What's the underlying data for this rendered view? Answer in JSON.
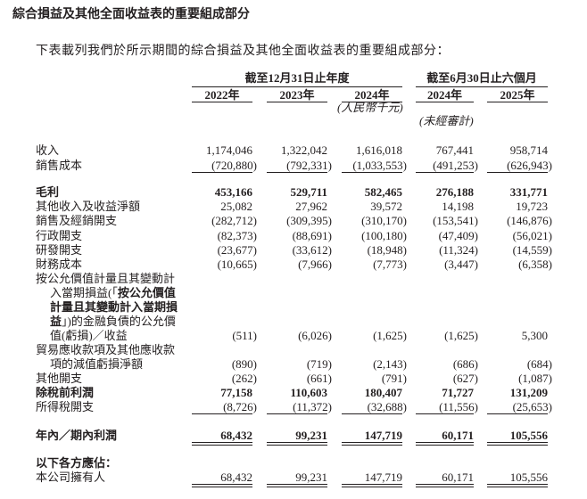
{
  "title": "綜合損益及其他全面收益表的重要組成部分",
  "intro": "下表載列我們於所示期間的綜合損益及其他全面收益表的重要組成部分：",
  "header": {
    "group_annual": "截至12月31日止年度",
    "group_half": "截至6月30日止六個月",
    "years": [
      "2022年",
      "2023年",
      "2024年",
      "2024年",
      "2025年"
    ],
    "unit": "(人民幣千元)",
    "unaudited": "(未經審計)"
  },
  "rows": [
    {
      "label": [
        [
          {
            "t": "收入"
          }
        ]
      ],
      "values": [
        "1,174,046",
        "1,322,042",
        "1,616,018",
        "767,441",
        "958,714"
      ]
    },
    {
      "label": [
        [
          {
            "t": "銷售成本"
          }
        ]
      ],
      "values": [
        "(720,880)",
        "(792,331)",
        "(1,033,553)",
        "(491,253)",
        "(626,943)"
      ],
      "rule": "single"
    },
    {
      "label": [
        [
          {
            "t": "毛利"
          }
        ]
      ],
      "values": [
        "453,166",
        "529,711",
        "582,465",
        "276,188",
        "331,771"
      ],
      "bold": true
    },
    {
      "label": [
        [
          {
            "t": "其他收入及收益淨額"
          }
        ]
      ],
      "values": [
        "25,082",
        "27,962",
        "39,572",
        "14,198",
        "19,723"
      ]
    },
    {
      "label": [
        [
          {
            "t": "銷售及經銷開支"
          }
        ]
      ],
      "values": [
        "(282,712)",
        "(309,395)",
        "(310,170)",
        "(153,541)",
        "(146,876)"
      ]
    },
    {
      "label": [
        [
          {
            "t": "行政開支"
          }
        ]
      ],
      "values": [
        "(82,373)",
        "(88,691)",
        "(100,180)",
        "(47,409)",
        "(56,021)"
      ]
    },
    {
      "label": [
        [
          {
            "t": "研發開支"
          }
        ]
      ],
      "values": [
        "(23,677)",
        "(33,612)",
        "(18,948)",
        "(11,324)",
        "(14,559)"
      ]
    },
    {
      "label": [
        [
          {
            "t": "財務成本"
          }
        ]
      ],
      "values": [
        "(10,665)",
        "(7,966)",
        "(7,773)",
        "(3,447)",
        "(6,358)"
      ]
    },
    {
      "label": [
        [
          {
            "t": "按公允價值計量且其變動計"
          }
        ],
        [
          {
            "t": "入當期損益(「"
          },
          {
            "t": "按公允價值",
            "b": true
          }
        ],
        [
          {
            "t": "計量且其變動計入當期損",
            "b": true
          }
        ],
        [
          {
            "t": "益",
            "b": true
          },
          {
            "t": "」)的金融負債的公允價"
          }
        ],
        [
          {
            "t": "值(虧損)／收益"
          }
        ]
      ],
      "values": [
        "(511)",
        "(6,026)",
        "(1,625)",
        "(1,625)",
        "5,300"
      ]
    },
    {
      "label": [
        [
          {
            "t": "貿易應收款項及其他應收款"
          }
        ],
        [
          {
            "t": "項的減值虧損淨額"
          }
        ]
      ],
      "values": [
        "(890)",
        "(719)",
        "(2,143)",
        "(686)",
        "(684)"
      ]
    },
    {
      "label": [
        [
          {
            "t": "其他開支"
          }
        ]
      ],
      "values": [
        "(262)",
        "(661)",
        "(791)",
        "(627)",
        "(1,087)"
      ]
    },
    {
      "label": [
        [
          {
            "t": "除稅前利潤"
          }
        ]
      ],
      "values": [
        "77,158",
        "110,603",
        "180,407",
        "71,727",
        "131,209"
      ],
      "bold": true
    },
    {
      "label": [
        [
          {
            "t": "所得稅開支"
          }
        ]
      ],
      "values": [
        "(8,726)",
        "(11,372)",
        "(32,688)",
        "(11,556)",
        "(25,653)"
      ],
      "rule": "single"
    },
    {
      "label": [
        [
          {
            "t": "年內／期內利潤"
          }
        ]
      ],
      "values": [
        "68,432",
        "99,231",
        "147,719",
        "60,171",
        "105,556"
      ],
      "bold": true,
      "rule": "double"
    },
    {
      "label": [
        [
          {
            "t": "以下各方應佔："
          }
        ]
      ],
      "values": [],
      "bold": true
    },
    {
      "label": [
        [
          {
            "t": "本公司擁有人"
          }
        ]
      ],
      "values": [
        "68,432",
        "99,231",
        "147,719",
        "60,171",
        "105,556"
      ],
      "rule": "double"
    }
  ]
}
